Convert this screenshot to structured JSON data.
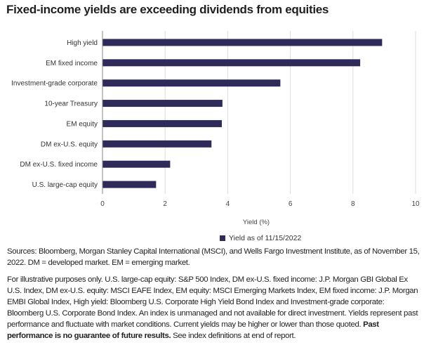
{
  "title": "Fixed-income yields are exceeding dividends from equities",
  "chart_data": {
    "type": "bar",
    "orientation": "horizontal",
    "categories": [
      "High yield",
      "EM fixed income",
      "Investment-grade corporate",
      "10-year Treasury",
      "EM equity",
      "DM ex-U.S. equity",
      "DM ex-U.S. fixed income",
      "U.S. large-cap equity"
    ],
    "series": [
      {
        "name": "Yield as of 11/15/2022",
        "values": [
          8.92,
          8.22,
          5.67,
          3.82,
          3.8,
          3.47,
          2.15,
          1.7
        ],
        "color": "#2e2a5a"
      }
    ],
    "xlabel": "Yield (%)",
    "xlim": [
      0,
      10
    ],
    "xticks": [
      "0",
      "2",
      "4",
      "6",
      "8",
      "10"
    ],
    "grid": "vertical",
    "legend": "bottom"
  },
  "notes": {
    "sources": "Sources: Bloomberg, Morgan Stanley Capital International (MSCI), and Wells Fargo Investment Institute, as of November 15, 2022. DM = developed market. EM = emerging market.",
    "disclaimer": "For illustrative purposes only. U.S. large-cap equity: S&P 500 Index, DM ex-U.S. fixed income: J.P. Morgan GBI Global Ex U.S. Index, DM ex-U.S. equity: MSCI EAFE Index, EM equity: MSCI Emerging Markets Index, EM fixed income: J.P. Morgan EMBI Global Index, High yield: Bloomberg U.S. Corporate High Yield Bond Index and  Investment-grade corporate: Bloomberg U.S. Corporate Bond Index. An index is unmanaged and not available for direct investment. Yields represent past performance and fluctuate with market conditions. Current yields may be higher or lower than those quoted.",
    "disclaimer_bold": "Past performance is no guarantee of future results.",
    "disclaimer_end": "See index definitions at end of report."
  }
}
